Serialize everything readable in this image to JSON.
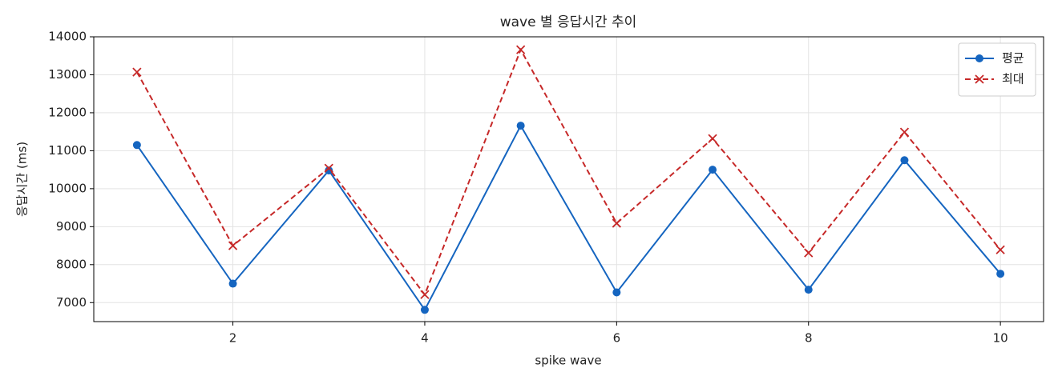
{
  "chart_data": {
    "type": "line",
    "title": "wave 별 응답시간 추이",
    "xlabel": "spike wave",
    "ylabel": "응답시간 (ms)",
    "x": [
      1,
      2,
      3,
      4,
      5,
      6,
      7,
      8,
      9,
      10
    ],
    "series": [
      {
        "name": "평균",
        "color": "#1565c0",
        "marker": "circle",
        "dash": "solid",
        "values": [
          11150,
          7500,
          10480,
          6810,
          11660,
          7270,
          10500,
          7340,
          10750,
          7760
        ]
      },
      {
        "name": "최대",
        "color": "#c62828",
        "marker": "x",
        "dash": "dashed",
        "values": [
          13070,
          8500,
          10540,
          7210,
          13660,
          9090,
          11320,
          8310,
          11490,
          8390
        ]
      }
    ],
    "xlim": [
      0.55,
      10.45
    ],
    "xticks": [
      2,
      4,
      6,
      8,
      10
    ],
    "ylim": [
      6500,
      14000
    ],
    "yticks": [
      7000,
      8000,
      9000,
      10000,
      11000,
      12000,
      13000,
      14000
    ],
    "grid": true,
    "legend": "upper right"
  }
}
